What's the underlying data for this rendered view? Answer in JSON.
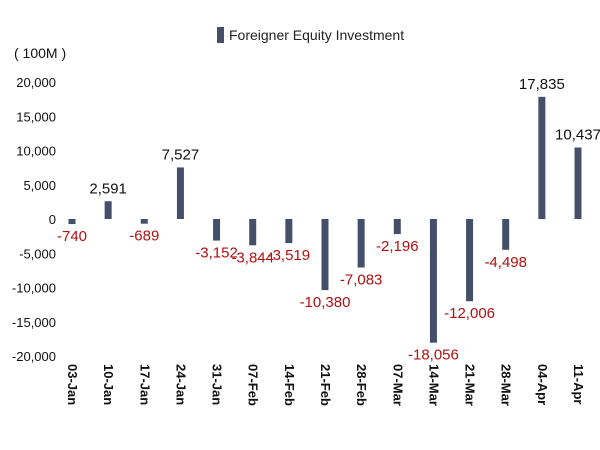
{
  "chart_data": {
    "type": "bar",
    "unit_label": "( 100M )",
    "legend": {
      "position": "top-center",
      "entries": [
        "Foreigner Equity Investment"
      ]
    },
    "categories": [
      "03-Jan",
      "10-Jan",
      "17-Jan",
      "24-Jan",
      "31-Jan",
      "07-Feb",
      "14-Feb",
      "21-Feb",
      "28-Feb",
      "07-Mar",
      "14-Mar",
      "21-Mar",
      "28-Mar",
      "04-Apr",
      "11-Apr"
    ],
    "series": [
      {
        "name": "Foreigner Equity Investment",
        "values": [
          -740,
          2591,
          -689,
          7527,
          -3152,
          -3844,
          -3519,
          -10380,
          -7083,
          -2196,
          -18056,
          -12006,
          -4498,
          17835,
          10437
        ]
      }
    ],
    "data_labels": [
      "-740",
      "2,591",
      "-689",
      "7,527",
      "-3,152",
      "-3,844",
      "-3,519",
      "-10,380",
      "-7,083",
      "-2,196",
      "-18,056",
      "-12,006",
      "-4,498",
      "17,835",
      "10,437"
    ],
    "ylim": [
      -20000,
      20000
    ],
    "yticks": [
      -20000,
      -15000,
      -10000,
      -5000,
      0,
      5000,
      10000,
      15000,
      20000
    ],
    "ytick_labels": [
      "-20,000",
      "-15,000",
      "-10,000",
      "-5,000",
      "0",
      "5,000",
      "10,000",
      "15,000",
      "20,000"
    ],
    "grid": false,
    "colors": {
      "bar": "#44506a",
      "positive_label": "#111111",
      "negative_label": "#b01010"
    }
  }
}
